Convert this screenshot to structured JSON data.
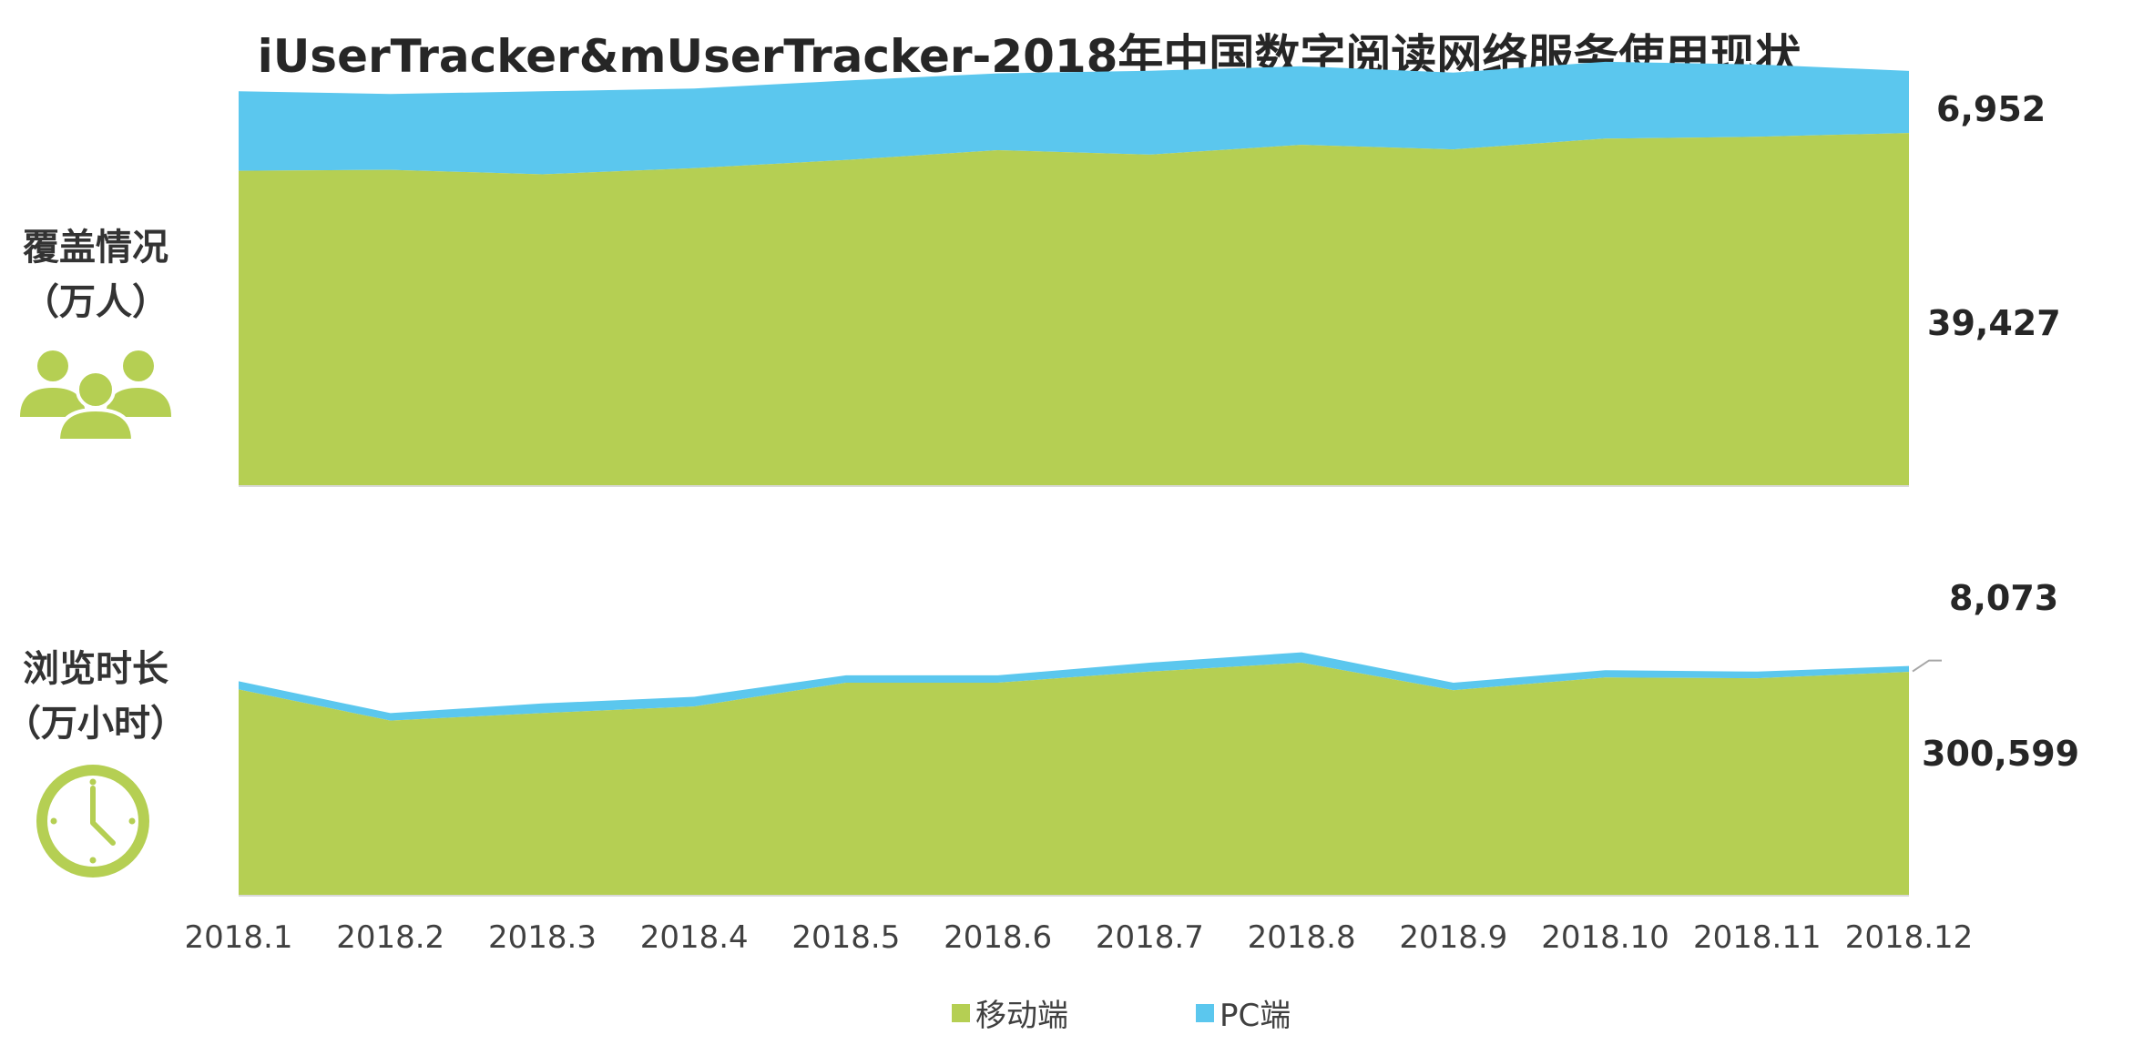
{
  "title": "iUserTracker&mUserTracker-2018年中国数字阅读网络服务使用现状",
  "panels": {
    "coverage": {
      "label_line1": "覆盖情况",
      "label_line2": "（万人）",
      "icon": "people-icon"
    },
    "duration": {
      "label_line1": "浏览时长",
      "label_line2": "（万小时）",
      "icon": "clock-icon"
    }
  },
  "colors": {
    "mobile": "#B5CF53",
    "pc": "#5BC7EE",
    "baseline": "#D9D9D9",
    "text": "#262626"
  },
  "legend": [
    {
      "key": "mobile",
      "label": "移动端"
    },
    {
      "key": "pc",
      "label": "PC端"
    }
  ],
  "end_labels": {
    "coverage_pc": "6,952",
    "coverage_mobile": "39,427",
    "duration_pc": "8,073",
    "duration_mobile": "300,599"
  },
  "chart_data": [
    {
      "type": "area",
      "stacked": true,
      "title": "覆盖情况（万人）",
      "categories": [
        "2018.1",
        "2018.2",
        "2018.3",
        "2018.4",
        "2018.5",
        "2018.6",
        "2018.7",
        "2018.8",
        "2018.9",
        "2018.10",
        "2018.11",
        "2018.12"
      ],
      "series": [
        {
          "name": "移动端",
          "values": [
            35200,
            35300,
            34800,
            35500,
            36400,
            37500,
            37000,
            38100,
            37600,
            38800,
            39000,
            39427
          ]
        },
        {
          "name": "PC端",
          "values": [
            8900,
            8500,
            9300,
            8900,
            8900,
            8600,
            9400,
            8800,
            8600,
            8600,
            8100,
            6952
          ]
        }
      ],
      "ylim": [
        0,
        48000
      ]
    },
    {
      "type": "area",
      "stacked": true,
      "title": "浏览时长（万小时）",
      "categories": [
        "2018.1",
        "2018.2",
        "2018.3",
        "2018.4",
        "2018.5",
        "2018.6",
        "2018.7",
        "2018.8",
        "2018.9",
        "2018.10",
        "2018.11",
        "2018.12"
      ],
      "series": [
        {
          "name": "移动端",
          "values": [
            277000,
            235000,
            245000,
            254000,
            286000,
            286000,
            301000,
            313000,
            276000,
            293000,
            292000,
            300599
          ]
        },
        {
          "name": "PC端",
          "values": [
            11000,
            10000,
            13000,
            13000,
            10000,
            10000,
            12000,
            14000,
            10000,
            10000,
            9000,
            8073
          ]
        }
      ],
      "ylim": [
        0,
        480000
      ]
    }
  ]
}
